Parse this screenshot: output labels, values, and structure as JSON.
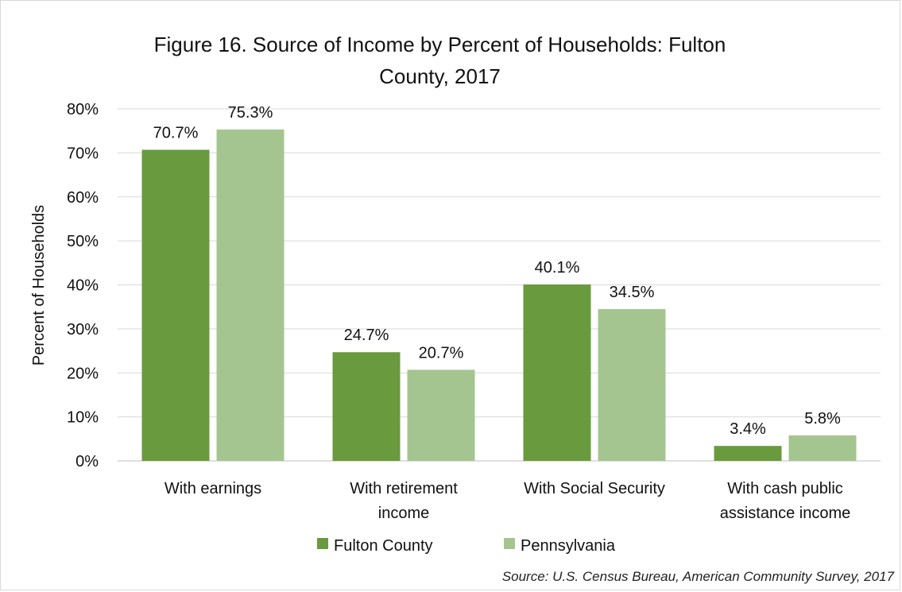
{
  "chart_data": {
    "type": "bar",
    "title_line1": "Figure 16. Source of Income by Percent of Households: Fulton",
    "title_line2": "County, 2017",
    "ylabel": "Percent of Households",
    "xlabel": "",
    "ylim": [
      0,
      80
    ],
    "yticks": [
      "0%",
      "10%",
      "20%",
      "30%",
      "40%",
      "50%",
      "60%",
      "70%",
      "80%"
    ],
    "categories": [
      [
        "With earnings"
      ],
      [
        "With retirement",
        "income"
      ],
      [
        "With Social Security"
      ],
      [
        "With cash public",
        "assistance income"
      ]
    ],
    "series": [
      {
        "name": "Fulton County",
        "values": [
          70.7,
          24.7,
          40.1,
          3.4
        ],
        "labels": [
          "70.7%",
          "24.7%",
          "40.1%",
          "3.4%"
        ],
        "color": "#6a9a3e"
      },
      {
        "name": "Pennsylvania",
        "values": [
          75.3,
          20.7,
          34.5,
          5.8
        ],
        "labels": [
          "75.3%",
          "20.7%",
          "34.5%",
          "5.8%"
        ],
        "color": "#a5c590"
      }
    ],
    "grid": true,
    "legend_position": "bottom",
    "source": "Source: U.S. Census Bureau, American Community Survey, 2017"
  }
}
